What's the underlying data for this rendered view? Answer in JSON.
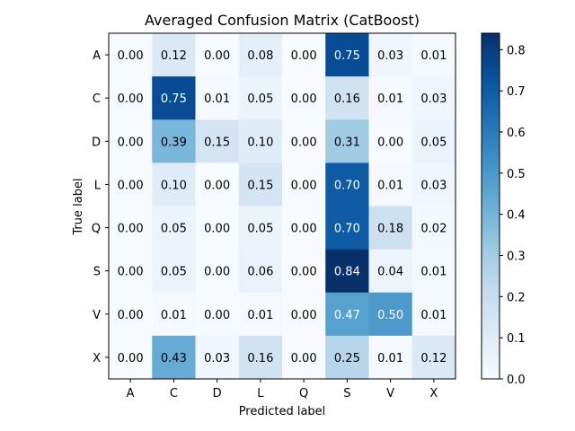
{
  "chart_data": {
    "type": "heatmap",
    "title": "Averaged Confusion Matrix (CatBoost)",
    "xlabel": "Predicted label",
    "ylabel": "True label",
    "x_categories": [
      "A",
      "C",
      "D",
      "L",
      "Q",
      "S",
      "V",
      "X"
    ],
    "y_categories": [
      "A",
      "C",
      "D",
      "L",
      "Q",
      "S",
      "V",
      "X"
    ],
    "values": [
      [
        0.0,
        0.12,
        0.0,
        0.08,
        0.0,
        0.75,
        0.03,
        0.01
      ],
      [
        0.0,
        0.75,
        0.01,
        0.05,
        0.0,
        0.16,
        0.01,
        0.03
      ],
      [
        0.0,
        0.39,
        0.15,
        0.1,
        0.0,
        0.31,
        0.0,
        0.05
      ],
      [
        0.0,
        0.1,
        0.0,
        0.15,
        0.0,
        0.7,
        0.01,
        0.03
      ],
      [
        0.0,
        0.05,
        0.0,
        0.05,
        0.0,
        0.7,
        0.18,
        0.02
      ],
      [
        0.0,
        0.05,
        0.0,
        0.06,
        0.0,
        0.84,
        0.04,
        0.01
      ],
      [
        0.0,
        0.01,
        0.0,
        0.01,
        0.0,
        0.47,
        0.5,
        0.01
      ],
      [
        0.0,
        0.43,
        0.03,
        0.16,
        0.0,
        0.25,
        0.01,
        0.12
      ]
    ],
    "colormap": "Blues",
    "value_range": [
      0.0,
      0.84
    ],
    "colorbar_ticks": [
      "0.0",
      "0.1",
      "0.2",
      "0.3",
      "0.4",
      "0.5",
      "0.6",
      "0.7",
      "0.8"
    ],
    "colorbar_tick_values": [
      0.0,
      0.1,
      0.2,
      0.3,
      0.4,
      0.5,
      0.6,
      0.7,
      0.8
    ]
  }
}
